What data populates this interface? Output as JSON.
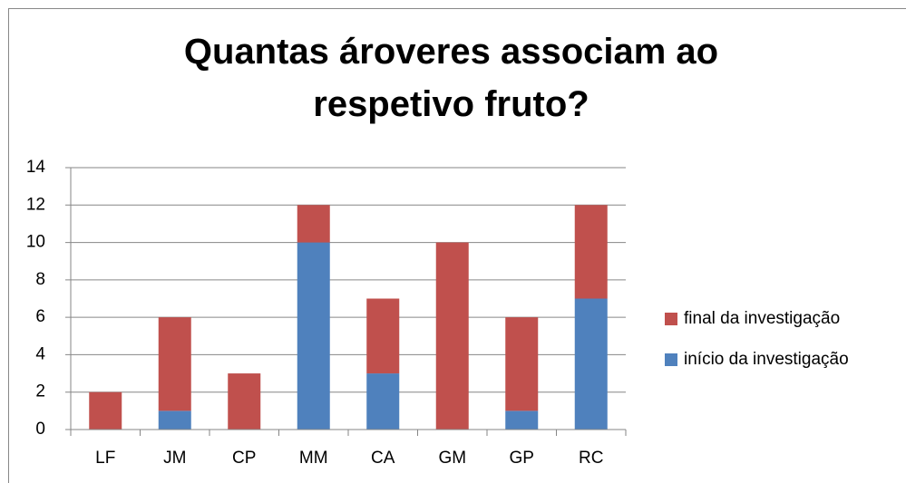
{
  "chart_data": {
    "type": "stacked_bar",
    "title": "Quantas ároveres associam ao respetivo fruto?",
    "categories": [
      "LF",
      "JM",
      "CP",
      "MM",
      "CA",
      "GM",
      "GP",
      "RC"
    ],
    "series": [
      {
        "name": "início da investigação",
        "color": "#4f81bd",
        "values": [
          0,
          1,
          0,
          10,
          3,
          0,
          1,
          7
        ]
      },
      {
        "name": "final da investigação",
        "color": "#c0504d",
        "values": [
          2,
          5,
          3,
          2,
          4,
          10,
          5,
          5
        ]
      }
    ],
    "ylim": [
      0,
      14
    ],
    "yticks": [
      0,
      2,
      4,
      6,
      8,
      10,
      12,
      14
    ],
    "grid": true,
    "legend": "right"
  }
}
